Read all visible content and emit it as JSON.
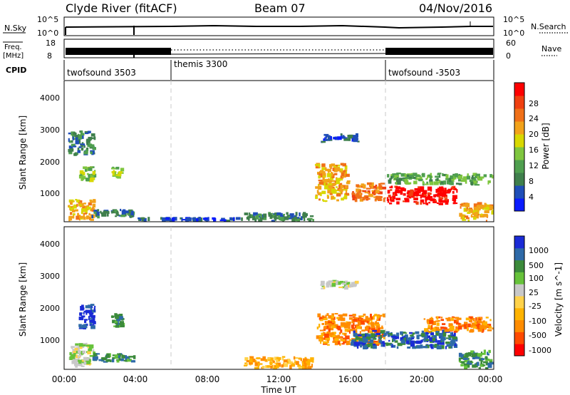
{
  "header": {
    "station": "Clyde River (fitACF)",
    "beam": "Beam 07",
    "date": "04/Nov/2016"
  },
  "nsky_panel": {
    "left_label": "N.Sky",
    "left_ticks": [
      "10^5",
      "10^0"
    ],
    "right_ticks": [
      "10^5",
      "10^0"
    ],
    "right_label": "N.Search"
  },
  "freq_panel": {
    "left_label_1": "Freq.",
    "left_label_2": "[MHz]",
    "left_ticks": [
      "18",
      "8"
    ],
    "right_ticks": [
      "60",
      "0"
    ],
    "right_label": "Nave"
  },
  "cpid": {
    "label": "CPID",
    "segments": [
      {
        "name": "twofsound 3503",
        "start_h": 0
      },
      {
        "name": "themis 3300",
        "start_h": 6
      },
      {
        "name": "twofsound -3503",
        "start_h": 18
      }
    ]
  },
  "time_axis": {
    "title": "Time UT",
    "ticks": [
      "00:00",
      "04:00",
      "08:00",
      "12:00",
      "16:00",
      "20:00",
      "00:00"
    ]
  },
  "colors": {
    "power_scale": [
      "#0a1cff",
      "#1f4eb8",
      "#3f7f4c",
      "#4f9f4f",
      "#7fc63f",
      "#d8d800",
      "#f2a21a",
      "#f07018",
      "#f04010",
      "#ff0000"
    ],
    "velocity_scale": [
      "#ff0000",
      "#ff4a00",
      "#ff8c00",
      "#ffb300",
      "#ffd24a",
      "#c8c8c8",
      "#66c23a",
      "#3b8a3b",
      "#2e6aa8",
      "#1a2bd6"
    ]
  },
  "chart_data": [
    {
      "type": "heatmap",
      "name": "power",
      "ylabel": "Slant Range [km]",
      "ylim": [
        200,
        4500
      ],
      "yticks": [
        "4000",
        "3000",
        "2000",
        "1000"
      ],
      "xlim": [
        0,
        24
      ],
      "colorbar": {
        "title": "Power [dB]",
        "ticks": [
          "28",
          "24",
          "20",
          "16",
          "12",
          "8",
          "4"
        ]
      },
      "data": [
        {
          "t": [
            0.2,
            1.8
          ],
          "r": [
            200,
            900
          ],
          "level": 6
        },
        {
          "t": [
            0.2,
            1.8
          ],
          "r": [
            2200,
            3000
          ],
          "level": 2
        },
        {
          "t": [
            0.8,
            1.8
          ],
          "r": [
            1400,
            1900
          ],
          "level": 4
        },
        {
          "t": [
            2.6,
            3.4
          ],
          "r": [
            1500,
            1900
          ],
          "level": 4
        },
        {
          "t": [
            1.5,
            4.0
          ],
          "r": [
            300,
            600
          ],
          "level": 2
        },
        {
          "t": [
            4.0,
            10.0
          ],
          "r": [
            200,
            350
          ],
          "level": 1
        },
        {
          "t": [
            10.0,
            14.0
          ],
          "r": [
            200,
            500
          ],
          "level": 2
        },
        {
          "t": [
            14.0,
            16.0
          ],
          "r": [
            800,
            2000
          ],
          "level": 6
        },
        {
          "t": [
            14.3,
            16.5
          ],
          "r": [
            2600,
            2900
          ],
          "level": 1
        },
        {
          "t": [
            16.0,
            18.0
          ],
          "r": [
            800,
            1400
          ],
          "level": 7
        },
        {
          "t": [
            18.0,
            22.0
          ],
          "r": [
            700,
            1300
          ],
          "level": 9
        },
        {
          "t": [
            18.0,
            24.0
          ],
          "r": [
            1300,
            1700
          ],
          "level": 3
        },
        {
          "t": [
            22.0,
            24.0
          ],
          "r": [
            200,
            800
          ],
          "level": 6
        }
      ]
    },
    {
      "type": "heatmap",
      "name": "velocity",
      "ylabel": "Slant Range [km]",
      "ylim": [
        200,
        4500
      ],
      "yticks": [
        "4000",
        "3000",
        "2000",
        "1000"
      ],
      "xlim": [
        0,
        24
      ],
      "colorbar": {
        "title": "Velocity [m s^-1]",
        "ticks": [
          "1000",
          "500",
          "100",
          "25",
          "-25",
          "-100",
          "-500",
          "-1000"
        ]
      },
      "data": [
        {
          "t": [
            0.2,
            1.8
          ],
          "r": [
            200,
            1000
          ],
          "level": 5
        },
        {
          "t": [
            0.8,
            1.8
          ],
          "r": [
            1400,
            2200
          ],
          "level": 9
        },
        {
          "t": [
            2.6,
            3.4
          ],
          "r": [
            1400,
            1900
          ],
          "level": 7
        },
        {
          "t": [
            1.5,
            4.0
          ],
          "r": [
            400,
            700
          ],
          "level": 7
        },
        {
          "t": [
            10.0,
            14.0
          ],
          "r": [
            200,
            600
          ],
          "level": 3
        },
        {
          "t": [
            14.0,
            18.0
          ],
          "r": [
            900,
            1900
          ],
          "level": 2
        },
        {
          "t": [
            14.3,
            16.5
          ],
          "r": [
            2600,
            2900
          ],
          "level": 5
        },
        {
          "t": [
            16.0,
            22.0
          ],
          "r": [
            800,
            1400
          ],
          "level": 8
        },
        {
          "t": [
            20.0,
            24.0
          ],
          "r": [
            1300,
            1800
          ],
          "level": 2
        },
        {
          "t": [
            22.0,
            24.0
          ],
          "r": [
            200,
            800
          ],
          "level": 7
        }
      ]
    }
  ]
}
